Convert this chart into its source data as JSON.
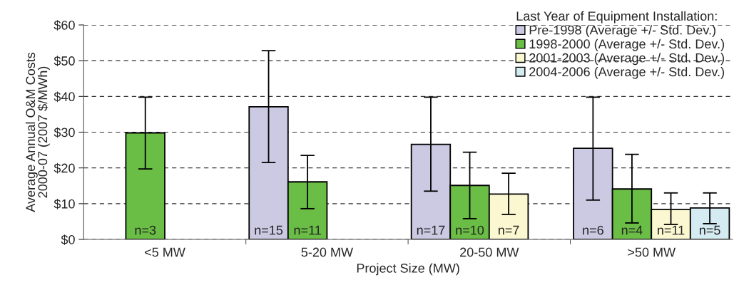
{
  "chart_data": {
    "type": "bar",
    "xlabel": "Project Size (MW)",
    "ylabel": "Average Annual O&M Costs\n2000-07 (2007 $/MWh)",
    "legend_title": "Last Year of Equipment Installation:",
    "annotations": [
      "n=15",
      "n=17",
      "n=6",
      "n=3",
      "n=11",
      "n=10",
      "n=4",
      "n=7",
      "n=11",
      "n=5"
    ],
    "categories": [
      "<5 MW",
      "5-20 MW",
      "20-50 MW",
      ">50 MW"
    ],
    "series": [
      {
        "name": "Pre-1998 (Average +/- Std. Dev.)",
        "color": "#ccc9e3",
        "values": [
          null,
          37.1,
          26.6,
          25.5
        ],
        "errors": [
          null,
          [
            21.5,
            52.8
          ],
          [
            13.5,
            39.8
          ],
          [
            11.0,
            39.8
          ]
        ]
      },
      {
        "name": "1998-2000 (Average +/- Std. Dev.)",
        "color": "#6abd45",
        "values": [
          29.8,
          16.1,
          15.1,
          14.1
        ],
        "errors": [
          [
            19.7,
            39.8
          ],
          [
            8.6,
            23.5
          ],
          [
            5.8,
            24.4
          ],
          [
            4.6,
            23.8
          ]
        ]
      },
      {
        "name": "2001-2003 (Average +/- Std. Dev.)",
        "color": "#fbf8d1",
        "values": [
          null,
          null,
          12.7,
          8.4
        ],
        "errors": [
          null,
          null,
          [
            7.0,
            18.5
          ],
          [
            4.2,
            13.0
          ]
        ]
      },
      {
        "name": "2004-2006 (Average +/- Std. Dev.)",
        "color": "#d5ebf2",
        "values": [
          null,
          null,
          null,
          8.8
        ],
        "errors": [
          null,
          null,
          null,
          [
            4.4,
            13.0
          ]
        ]
      }
    ],
    "ylim": [
      0,
      60
    ],
    "yticks": [
      {
        "value": 0,
        "label": "$0"
      },
      {
        "value": 10,
        "label": "$10"
      },
      {
        "value": 20,
        "label": "$20"
      },
      {
        "value": 30,
        "label": "$30"
      },
      {
        "value": 40,
        "label": "$40"
      },
      {
        "value": 50,
        "label": "$50"
      },
      {
        "value": 60,
        "label": "$60"
      }
    ],
    "grid": "y",
    "legend": "top right"
  }
}
